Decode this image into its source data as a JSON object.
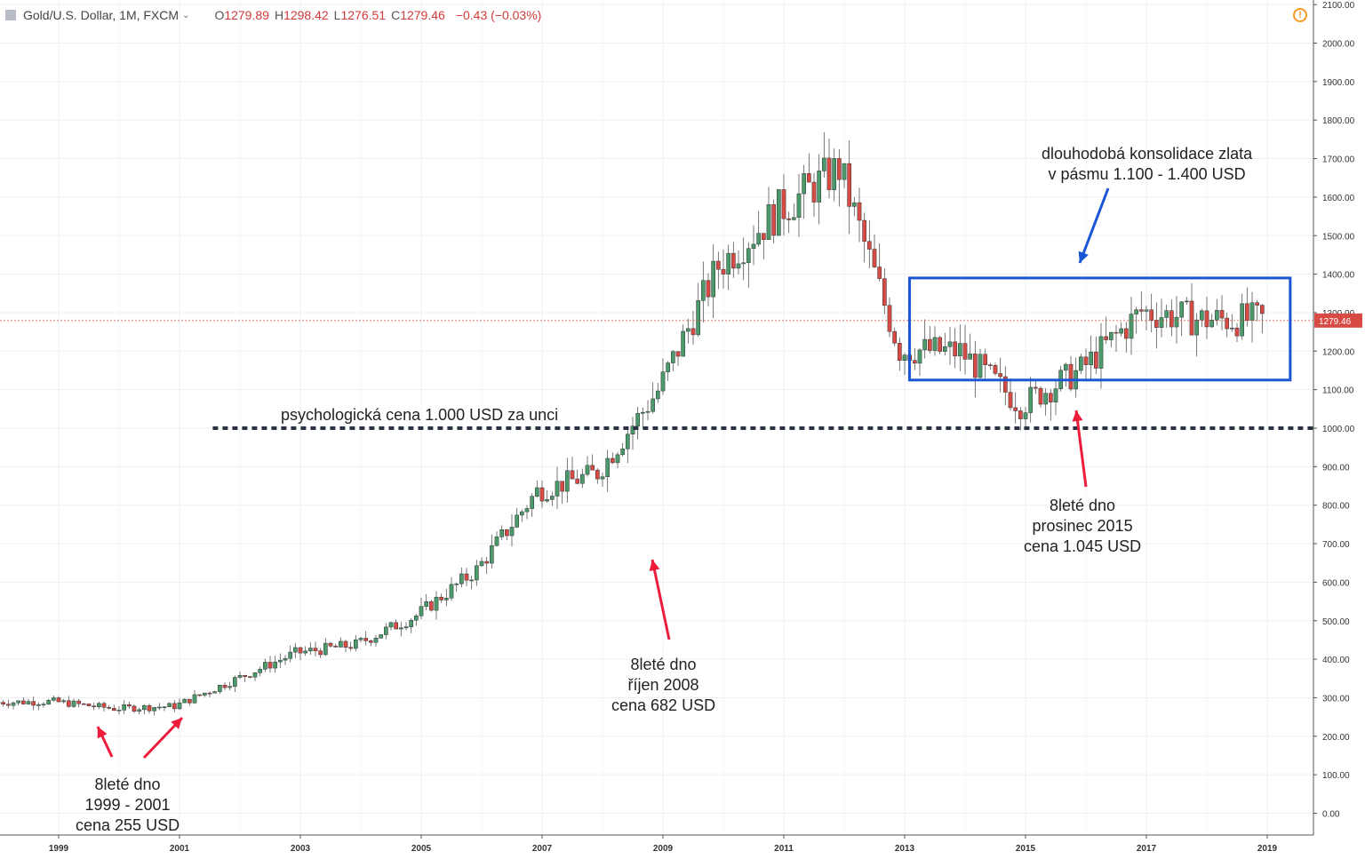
{
  "header": {
    "symbol": "Gold/U.S. Dollar, 1M, FXCM",
    "open_label": "O",
    "open": "1279.89",
    "high_label": "H",
    "high": "1298.42",
    "low_label": "L",
    "low": "1276.51",
    "close_label": "C",
    "close": "1279.46",
    "change": "−0.43 (−0.03%)",
    "alert_icon": "alert-clock-icon"
  },
  "colors": {
    "up": "#4a9a6b",
    "down": "#d84b45",
    "box": "#1a55d6",
    "arrow": "#ee1c3b",
    "dotted": "#2a3140"
  },
  "chart_data": {
    "type": "candlestick",
    "title": "Gold/U.S. Dollar, 1M, FXCM",
    "xlabel": "",
    "ylabel": "",
    "ylim": [
      -20,
      2110
    ],
    "xlim": [
      "1998-01",
      "2019-12"
    ],
    "grid": true,
    "last_price": "1279.46",
    "y_ticks": [
      "0.00",
      "100.00",
      "200.00",
      "300.00",
      "400.00",
      "500.00",
      "600.00",
      "700.00",
      "800.00",
      "900.00",
      "1000.00",
      "1100.00",
      "1200.00",
      "1300.00",
      "1400.00",
      "1500.00",
      "1600.00",
      "1700.00",
      "1800.00",
      "1900.00",
      "2000.00",
      "2100.00"
    ],
    "x_ticks": [
      "1999",
      "2001",
      "2003",
      "2005",
      "2007",
      "2009",
      "2011",
      "2013",
      "2015",
      "2017",
      "2019"
    ],
    "series_yearly_close": {
      "x": [
        1998,
        1999,
        2000,
        2001,
        2002,
        2003,
        2004,
        2005,
        2006,
        2007,
        2008,
        2009,
        2010,
        2011,
        2012,
        2013,
        2014,
        2015,
        2016,
        2017,
        2018
      ],
      "values": [
        288,
        290,
        272,
        278,
        347,
        416,
        438,
        513,
        632,
        836,
        884,
        1097,
        1421,
        1565,
        1675,
        1204,
        1199,
        1061,
        1151,
        1303,
        1282
      ]
    },
    "support_line": {
      "value": 1000,
      "label": "psychologická cena 1.000 USD za unci"
    },
    "range_box": {
      "low": 1125,
      "high": 1390,
      "from": "2013-03",
      "to": "2019-06"
    },
    "annotations": [
      {
        "lines": [
          "8leté dno",
          "1999 - 2001",
          "cena 255 USD"
        ]
      },
      {
        "lines": [
          "8leté dno",
          "říjen 2008",
          "cena 682 USD"
        ]
      },
      {
        "lines": [
          "8leté dno",
          "prosinec 2015",
          "cena 1.045 USD"
        ]
      },
      {
        "lines": [
          "dlouhodobá konsolidace zlata",
          "v pásmu 1.100 - 1.400 USD"
        ]
      }
    ]
  }
}
